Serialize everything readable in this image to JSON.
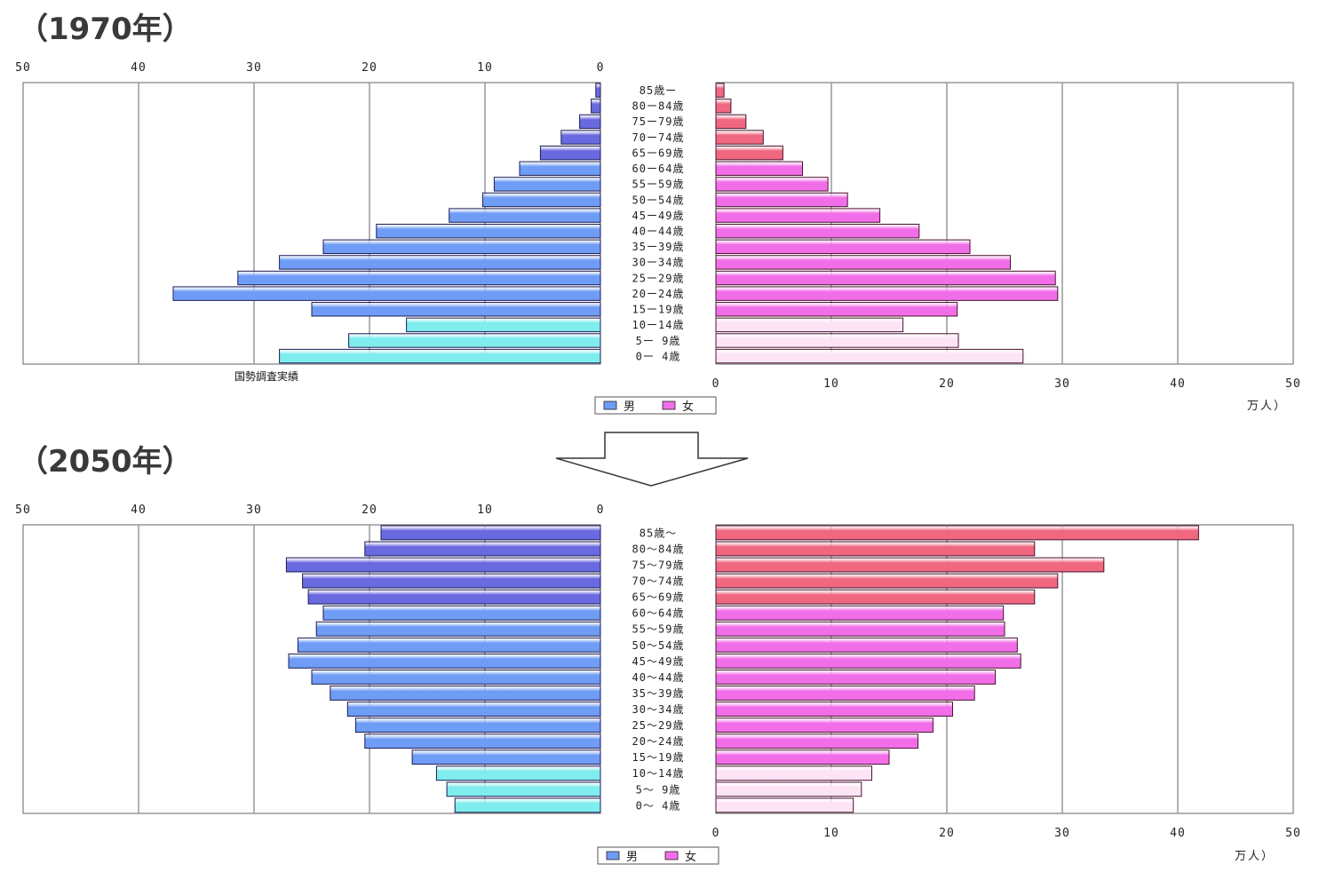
{
  "legend": {
    "male": "男",
    "female": "女"
  },
  "unit_label": "万人）",
  "age_groups": [
    "85歳ー",
    "80ー84歳",
    "75ー79歳",
    "70ー74歳",
    "65ー69歳",
    "60ー64歳",
    "55ー59歳",
    "50ー54歳",
    "45ー49歳",
    "40ー44歳",
    "35ー39歳",
    "30ー34歳",
    "25ー29歳",
    "20ー24歳",
    "15ー19歳",
    "10ー14歳",
    "5ー 9歳",
    "0ー 4歳"
  ],
  "age_groups_2050": [
    "85歳～",
    "80～84歳",
    "75～79歳",
    "70～74歳",
    "65～69歳",
    "60～64歳",
    "55～59歳",
    "50～54歳",
    "45～49歳",
    "40～44歳",
    "35～39歳",
    "30～34歳",
    "25～29歳",
    "20～24歳",
    "15～19歳",
    "10～14歳",
    "5～ 9歳",
    "0～ 4歳"
  ],
  "ticks": [
    "0",
    "10",
    "20",
    "30",
    "40",
    "50"
  ],
  "colors": {
    "male_elderly": "#6a6ae0",
    "male_working": "#6f9cf5",
    "male_young": "#7fecee",
    "female_elderly": "#f06880",
    "female_working": "#f26ee8",
    "female_young": "#fde4f4",
    "grid": "#999999"
  },
  "chart_data": [
    {
      "type": "bar",
      "title": "（1970年）",
      "note": "国勢調査実績",
      "categories": [
        "85歳ー",
        "80ー84歳",
        "75ー79歳",
        "70ー74歳",
        "65ー69歳",
        "60ー64歳",
        "55ー59歳",
        "50ー54歳",
        "45ー49歳",
        "40ー44歳",
        "35ー39歳",
        "30ー34歳",
        "25ー29歳",
        "20ー24歳",
        "15ー19歳",
        "10ー14歳",
        "5ー 9歳",
        "0ー 4歳"
      ],
      "xlim": [
        0,
        50
      ],
      "grid": true,
      "legend_position": "bottom-center",
      "series": [
        {
          "name": "男",
          "values": [
            0.4,
            0.8,
            1.8,
            3.4,
            5.2,
            7.0,
            9.2,
            10.2,
            13.1,
            19.4,
            24.0,
            27.8,
            31.4,
            37.0,
            25.0,
            16.8,
            21.8,
            27.8
          ]
        },
        {
          "name": "女",
          "values": [
            0.7,
            1.3,
            2.6,
            4.1,
            5.8,
            7.5,
            9.7,
            11.4,
            14.2,
            17.6,
            22.0,
            25.5,
            29.4,
            29.6,
            20.9,
            16.2,
            21.0,
            26.6
          ]
        }
      ]
    },
    {
      "type": "bar",
      "title": "（2050年）",
      "categories": [
        "85歳～",
        "80～84歳",
        "75～79歳",
        "70～74歳",
        "65～69歳",
        "60～64歳",
        "55～59歳",
        "50～54歳",
        "45～49歳",
        "40～44歳",
        "35～39歳",
        "30～34歳",
        "25～29歳",
        "20～24歳",
        "15～19歳",
        "10～14歳",
        "5～ 9歳",
        "0～ 4歳"
      ],
      "xlim": [
        0,
        50
      ],
      "grid": true,
      "legend_position": "bottom-center",
      "series": [
        {
          "name": "男",
          "values": [
            19.0,
            20.4,
            27.2,
            25.8,
            25.3,
            24.0,
            24.6,
            26.2,
            27.0,
            25.0,
            23.4,
            21.9,
            21.2,
            20.4,
            16.3,
            14.2,
            13.3,
            12.6
          ]
        },
        {
          "name": "女",
          "values": [
            41.8,
            27.6,
            33.6,
            29.6,
            27.6,
            24.9,
            25.0,
            26.1,
            26.4,
            24.2,
            22.4,
            20.5,
            18.8,
            17.5,
            15.0,
            13.5,
            12.6,
            11.9
          ]
        }
      ]
    }
  ]
}
